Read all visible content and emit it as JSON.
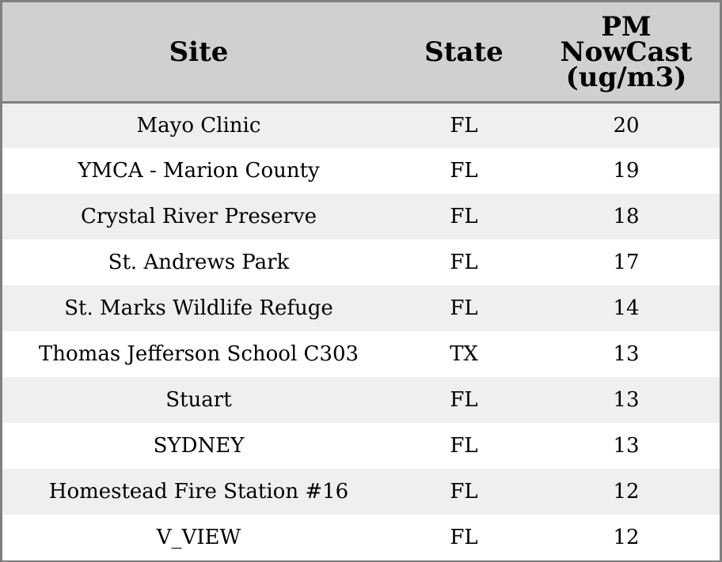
{
  "table": {
    "headers": {
      "site": "Site",
      "state": "State",
      "pm_line1": "PM",
      "pm_line2": "NowCast",
      "pm_line3": "(ug/m3)"
    },
    "rows": [
      {
        "site": "Mayo Clinic",
        "state": "FL",
        "pm": "20"
      },
      {
        "site": "YMCA - Marion County",
        "state": "FL",
        "pm": "19"
      },
      {
        "site": "Crystal River Preserve",
        "state": "FL",
        "pm": "18"
      },
      {
        "site": "St. Andrews Park",
        "state": "FL",
        "pm": "17"
      },
      {
        "site": "St. Marks Wildlife Refuge",
        "state": "FL",
        "pm": "14"
      },
      {
        "site": "Thomas Jefferson School C303",
        "state": "TX",
        "pm": "13"
      },
      {
        "site": "Stuart",
        "state": "FL",
        "pm": "13"
      },
      {
        "site": "SYDNEY",
        "state": "FL",
        "pm": "13"
      },
      {
        "site": "Homestead Fire Station #16",
        "state": "FL",
        "pm": "12"
      },
      {
        "site": "V_VIEW",
        "state": "FL",
        "pm": "12"
      }
    ]
  },
  "colors": {
    "header_bg": "#d0d0d0",
    "row_odd_bg": "#efefef",
    "row_even_bg": "#ffffff",
    "border": "#808080"
  }
}
